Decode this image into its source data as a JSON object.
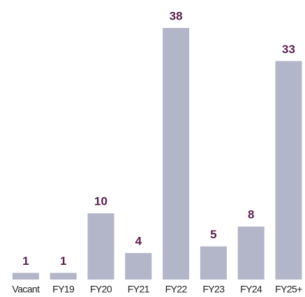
{
  "chart_data": {
    "type": "bar",
    "categories": [
      "Vacant",
      "FY19",
      "FY20",
      "FY21",
      "FY22",
      "FY23",
      "FY24",
      "FY25+"
    ],
    "values": [
      1,
      1,
      10,
      4,
      38,
      5,
      8,
      33
    ],
    "color": "#b3b5c8",
    "label_color": "#5b1f4f"
  }
}
